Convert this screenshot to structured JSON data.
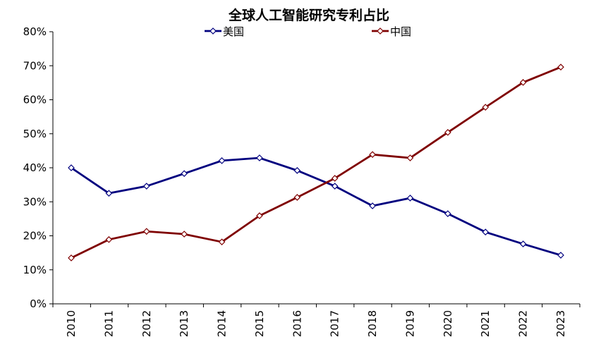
{
  "chart_data": {
    "type": "line",
    "title": "全球人工智能研究专利占比",
    "xlabel": "",
    "ylabel": "",
    "categories": [
      "2010",
      "2011",
      "2012",
      "2013",
      "2014",
      "2015",
      "2016",
      "2017",
      "2018",
      "2019",
      "2020",
      "2021",
      "2022",
      "2023"
    ],
    "ylim": [
      0,
      80
    ],
    "yticks": [
      "0%",
      "10%",
      "20%",
      "30%",
      "40%",
      "50%",
      "60%",
      "70%",
      "80%"
    ],
    "grid": false,
    "legend": "top",
    "series": [
      {
        "name": "美国",
        "color": "#00007F",
        "marker": "diamond-open",
        "values": [
          40.0,
          32.5,
          34.6,
          38.3,
          42.1,
          42.9,
          39.2,
          34.6,
          28.8,
          31.1,
          26.5,
          21.1,
          17.6,
          14.3
        ]
      },
      {
        "name": "中国",
        "color": "#7F0000",
        "marker": "diamond-open",
        "values": [
          13.5,
          18.9,
          21.3,
          20.5,
          18.2,
          25.9,
          31.3,
          36.9,
          43.9,
          42.9,
          50.4,
          57.8,
          65.1,
          69.6
        ]
      }
    ]
  }
}
